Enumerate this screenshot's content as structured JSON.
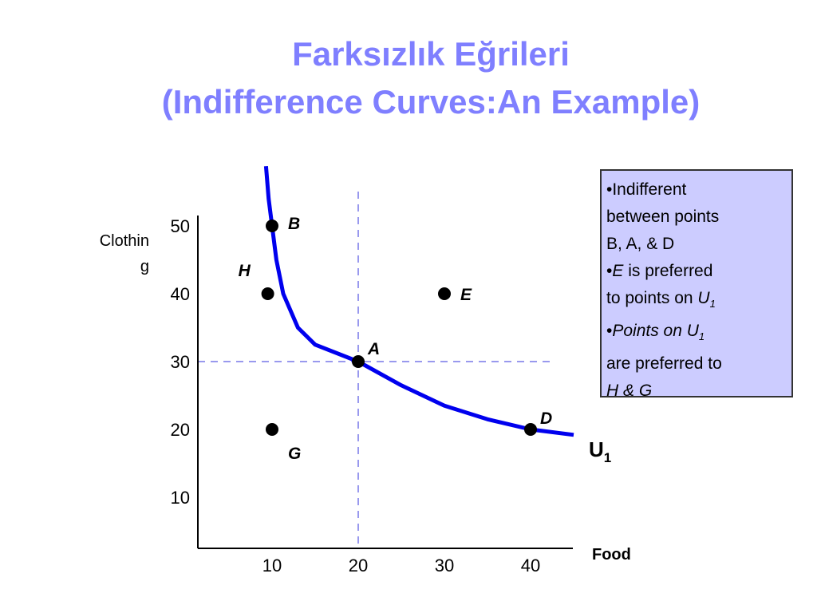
{
  "chart_data": {
    "type": "scatter",
    "title_lines": [
      "Farksızlık Eğrileri",
      "(Indifference Curves:An Example)"
    ],
    "y_label_lines": [
      "Clothin",
      "g"
    ],
    "x_label": "Food",
    "xlim": [
      0,
      45
    ],
    "ylim": [
      0,
      55
    ],
    "xticks": [
      10,
      20,
      30,
      40
    ],
    "yticks": [
      10,
      20,
      30,
      40,
      50
    ],
    "points": [
      {
        "label": "B",
        "x": 10,
        "y": 50
      },
      {
        "label": "H",
        "x": 9.5,
        "y": 40
      },
      {
        "label": "A",
        "x": 20,
        "y": 30
      },
      {
        "label": "E",
        "x": 30,
        "y": 40
      },
      {
        "label": "D",
        "x": 40,
        "y": 20
      },
      {
        "label": "G",
        "x": 10,
        "y": 20
      }
    ],
    "curve": {
      "name": "U",
      "subscript": "1",
      "color": "#0000ee",
      "x": [
        9.3,
        9.6,
        10,
        10.5,
        11.3,
        13,
        15,
        20,
        25,
        30,
        35,
        40,
        45
      ],
      "y": [
        58.8,
        54,
        50,
        45,
        40,
        35,
        32.5,
        30,
        26.5,
        23.5,
        21.5,
        20,
        19.2
      ]
    },
    "guides": {
      "x": 20,
      "y": 30,
      "color": "#9999ee"
    },
    "note": [
      [
        {
          "text": "•Indifferent",
          "style": "normal"
        }
      ],
      [
        {
          "text": "between points",
          "style": "normal"
        }
      ],
      [
        {
          "text": "B, A, & D",
          "style": "normal"
        }
      ],
      [
        {
          "text": "•",
          "style": "normal"
        },
        {
          "text": "E",
          "style": "italic"
        },
        {
          "text": " is preferred",
          "style": "normal"
        }
      ],
      [
        {
          "text": "to points on ",
          "style": "normal"
        },
        {
          "text": "U",
          "style": "italic"
        },
        {
          "text": "1",
          "style": "sub"
        }
      ],
      [
        {
          "text": "•",
          "style": "normal"
        },
        {
          "text": "Points on U",
          "style": "italic"
        },
        {
          "text": "1",
          "style": "sub"
        }
      ],
      [
        {
          "text": "are preferred to",
          "style": "normal"
        }
      ],
      [
        {
          "text": "H & G",
          "style": "italic"
        }
      ]
    ]
  }
}
